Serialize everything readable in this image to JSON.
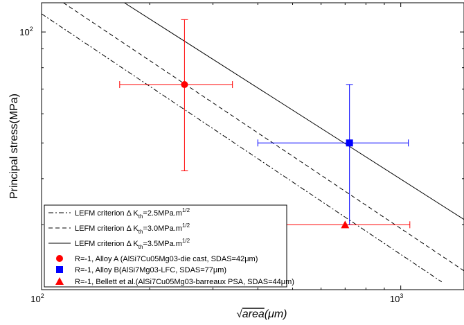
{
  "chart_data": {
    "type": "scatter",
    "title": "",
    "xscale": "log",
    "yscale": "log",
    "xlim": [
      100,
      1500
    ],
    "ylim": [
      20,
      120
    ],
    "xlabel": {
      "main": "area",
      "unit": "(μm)"
    },
    "ylabel": "Principal stress(MPa)",
    "x_ticks": [
      {
        "value": 100,
        "base": "10",
        "exp": "2"
      },
      {
        "value": 1000,
        "base": "10",
        "exp": "3"
      }
    ],
    "y_ticks": [
      {
        "value": 100,
        "base": "10",
        "exp": "2"
      }
    ],
    "grid": false,
    "legend_position": "bottom-left",
    "lines": [
      {
        "label_main": "LEFM criterion Δ K",
        "label_sub": "th",
        "label_rest": "=2.5MPa.m",
        "label_sup": "1/2",
        "dash": "dashdot",
        "points": [
          [
            100,
            112
          ],
          [
            1300,
            21
          ]
        ]
      },
      {
        "label_main": "LEFM criterion Δ K",
        "label_sub": "th",
        "label_rest": "=3.0MPa.m",
        "label_sup": "1/2",
        "dash": "dashed",
        "points": [
          [
            115,
            120
          ],
          [
            1500,
            22.5
          ]
        ]
      },
      {
        "label_main": "LEFM criterion Δ K",
        "label_sub": "th",
        "label_rest": "=3.5MPa.m",
        "label_sup": "1/2",
        "dash": "solid",
        "points": [
          [
            170,
            120
          ],
          [
            1500,
            31
          ]
        ]
      }
    ],
    "series": [
      {
        "label_pre": "R=-1, Alloy A (AlSi7Cu05Mg03-die cast, SDAS=42",
        "label_mu": "μ",
        "label_post": "m)",
        "marker": "circle",
        "color": "#ff0000",
        "x": 250,
        "y": 72,
        "xerr": [
          165,
          340
        ],
        "yerr": [
          42,
          108
        ]
      },
      {
        "label_pre": "R=-1, Alloy B(AlSi7Mg03-LFC, SDAS=77",
        "label_mu": "μ",
        "label_post": "m)",
        "marker": "square",
        "color": "#0000ff",
        "x": 720,
        "y": 50,
        "xerr": [
          400,
          1050
        ],
        "yerr": [
          30,
          72
        ]
      },
      {
        "label_pre": "R=-1, Bellett et al.(AlSi7Cu05Mg03-barreaux PSA, SDAS=44",
        "label_mu": "μ",
        "label_post": "m)",
        "marker": "triangle",
        "color": "#ff0000",
        "x": 700,
        "y": 30,
        "xerr": [
          340,
          1060
        ],
        "yerr": []
      }
    ]
  }
}
